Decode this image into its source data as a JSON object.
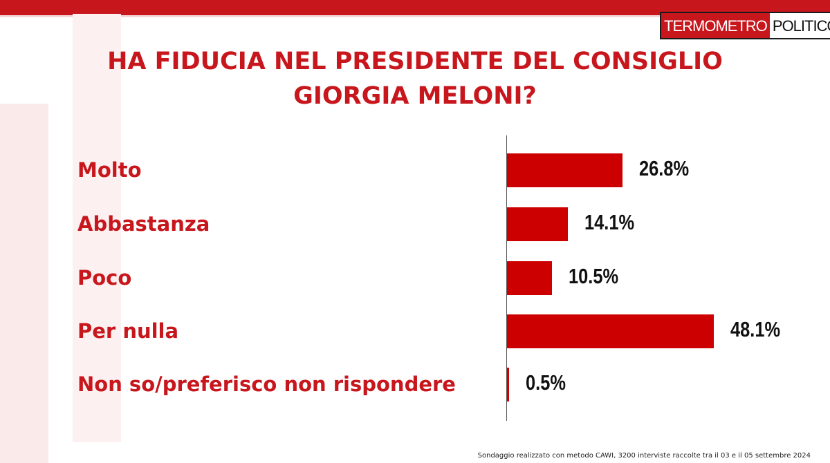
{
  "brand": {
    "logo_part1": "TERMOMETRO",
    "logo_part2": "POLITICO",
    "accent_color": "#c8161d"
  },
  "chart_data": {
    "type": "bar",
    "orientation": "horizontal",
    "title_line1": "HA FIDUCIA NEL PRESIDENTE DEL CONSIGLIO",
    "title_line2": "GIORGIA MELONI?",
    "categories": [
      "Molto",
      "Abbastanza",
      "Poco",
      "Per nulla",
      "Non so/preferisco non rispondere"
    ],
    "values": [
      26.8,
      14.1,
      10.5,
      48.1,
      0.5
    ],
    "value_labels": [
      "26.8%",
      "14.1%",
      "10.5%",
      "48.1%",
      "0.5%"
    ],
    "unit": "%",
    "xlim": [
      0,
      50
    ],
    "bar_color": "#cc0000",
    "grid": false,
    "legend": "none"
  },
  "footnote": "Sondaggio realizzato con metodo CAWI, 3200 interviste raccolte tra il 03 e il 05 settembre 2024"
}
